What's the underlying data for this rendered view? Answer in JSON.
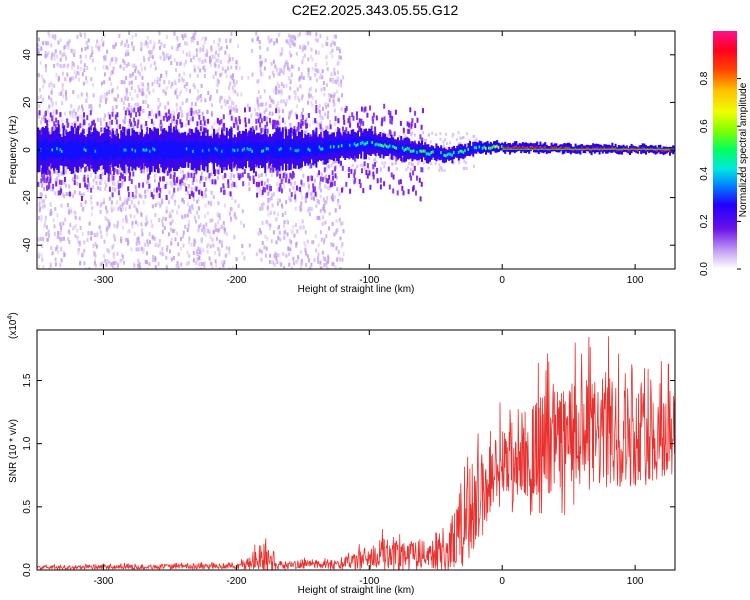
{
  "figure_title": "C2E2.2025.343.05.55.G12",
  "chart_data": [
    {
      "type": "heatmap",
      "name": "spectrogram",
      "xlabel": "Height of straight line (km)",
      "ylabel": "Frequency (Hz)",
      "xlim": [
        -350,
        130
      ],
      "ylim": [
        -50,
        50
      ],
      "xticks": [
        -300,
        -200,
        -100,
        0,
        100
      ],
      "xtick_labels": [
        "-300",
        "-200",
        "-100",
        "0",
        "100"
      ],
      "yticks": [
        -40,
        -20,
        0,
        20,
        40
      ],
      "ytick_labels": [
        "-40",
        "-20",
        "0",
        "20",
        "40"
      ],
      "band_center_hz": [
        {
          "x": -350,
          "y": 0
        },
        {
          "x": -150,
          "y": 0
        },
        {
          "x": -100,
          "y": 3
        },
        {
          "x": -80,
          "y": 1
        },
        {
          "x": -60,
          "y": -1
        },
        {
          "x": -40,
          "y": -2
        },
        {
          "x": -20,
          "y": 1
        },
        {
          "x": 0,
          "y": 1
        },
        {
          "x": 130,
          "y": 0
        }
      ],
      "band_halfwidth_hz": [
        {
          "x": -350,
          "y": 8
        },
        {
          "x": -150,
          "y": 7
        },
        {
          "x": -100,
          "y": 5
        },
        {
          "x": -50,
          "y": 3
        },
        {
          "x": 0,
          "y": 2
        },
        {
          "x": 130,
          "y": 1.5
        }
      ],
      "scatter_limit_x": -120,
      "colorbar": {
        "label": "Normalized spectral amplitude",
        "range": [
          0,
          1
        ],
        "ticks": [
          0.0,
          0.2,
          0.4,
          0.6,
          0.8
        ],
        "tick_labels": [
          "0.0",
          "0.2",
          "0.4",
          "0.6",
          "0.8"
        ]
      }
    },
    {
      "type": "line",
      "name": "snr",
      "xlabel": "Height of straight line (km)",
      "ylabel": "SNR (10 * v/v)",
      "scale_label": "(x10",
      "scale_exponent": "4",
      "xlim": [
        -350,
        130
      ],
      "ylim": [
        0,
        1.9
      ],
      "xticks": [
        -300,
        -200,
        -100,
        0,
        100
      ],
      "xtick_labels": [
        "-300",
        "-200",
        "-100",
        "0",
        "100"
      ],
      "yticks": [
        0.0,
        0.5,
        1.0,
        1.5
      ],
      "ytick_labels": [
        "0.0",
        "0.5",
        "1.0",
        "1.5"
      ],
      "color": "#e8312e",
      "envelope": [
        {
          "x": -350,
          "base": 0.02,
          "amp": 0.015
        },
        {
          "x": -200,
          "base": 0.03,
          "amp": 0.02
        },
        {
          "x": -190,
          "base": 0.05,
          "amp": 0.06
        },
        {
          "x": -178,
          "base": 0.1,
          "amp": 0.14
        },
        {
          "x": -170,
          "base": 0.04,
          "amp": 0.03
        },
        {
          "x": -120,
          "base": 0.05,
          "amp": 0.04
        },
        {
          "x": -100,
          "base": 0.1,
          "amp": 0.1
        },
        {
          "x": -80,
          "base": 0.14,
          "amp": 0.14
        },
        {
          "x": -60,
          "base": 0.12,
          "amp": 0.1
        },
        {
          "x": -40,
          "base": 0.18,
          "amp": 0.2
        },
        {
          "x": -25,
          "base": 0.4,
          "amp": 0.35
        },
        {
          "x": -15,
          "base": 0.6,
          "amp": 0.35
        },
        {
          "x": -5,
          "base": 0.78,
          "amp": 0.3
        },
        {
          "x": 10,
          "base": 0.88,
          "amp": 0.35
        },
        {
          "x": 30,
          "base": 1.0,
          "amp": 0.4
        },
        {
          "x": 55,
          "base": 1.05,
          "amp": 0.45
        },
        {
          "x": 80,
          "base": 1.08,
          "amp": 0.45
        },
        {
          "x": 100,
          "base": 1.06,
          "amp": 0.4
        },
        {
          "x": 130,
          "base": 1.05,
          "amp": 0.35
        }
      ],
      "peaks": [
        {
          "x": -178,
          "y": 0.25
        },
        {
          "x": 35,
          "y": 1.65
        },
        {
          "x": 55,
          "y": 1.8
        },
        {
          "x": 80,
          "y": 1.85
        },
        {
          "x": 125,
          "y": 1.63
        }
      ]
    }
  ]
}
